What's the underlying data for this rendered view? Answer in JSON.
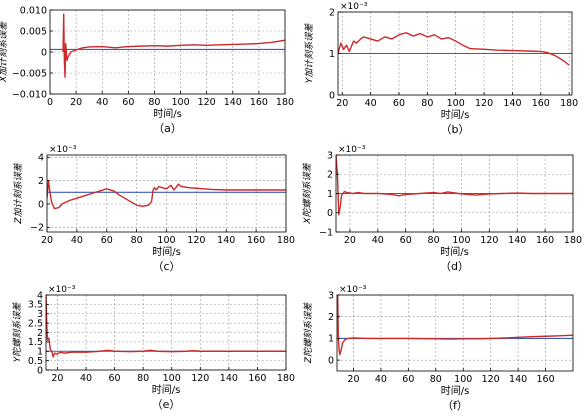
{
  "colors": {
    "estimate": "#cc2a2a",
    "reference": "#3b5bb8",
    "axis": "#000000",
    "grid": "#9a9a9a"
  },
  "chart_data": [
    {
      "type": "line",
      "panel_label": "（a）",
      "ylabel": "X加计刻系误差",
      "xlabel": "时间/s",
      "exponent": "",
      "grid": true,
      "xlim": [
        0,
        180
      ],
      "ylim": [
        -0.01,
        0.01
      ],
      "xticks": [
        0,
        20,
        40,
        60,
        80,
        100,
        120,
        140,
        160,
        180
      ],
      "yticks": [
        -0.01,
        -0.005,
        0,
        0.005,
        0.01
      ],
      "ytick_labels": [
        "−0.010",
        "−0.005",
        "0",
        "0.005",
        "0.010"
      ],
      "series": [
        {
          "role": "estimate",
          "x": [
            10,
            10.5,
            11,
            11.5,
            12,
            13,
            14,
            16,
            20,
            25,
            30,
            40,
            50,
            60,
            70,
            80,
            90,
            100,
            110,
            120,
            130,
            140,
            150,
            160,
            170,
            180
          ],
          "y": [
            0,
            0.009,
            -0.002,
            -0.006,
            0.002,
            -0.002,
            -0.001,
            0,
            0.0005,
            0.001,
            0.0012,
            0.0013,
            0.001,
            0.0013,
            0.0014,
            0.0015,
            0.0014,
            0.0016,
            0.0017,
            0.0016,
            0.0017,
            0.0018,
            0.0019,
            0.002,
            0.0023,
            0.0028
          ]
        },
        {
          "role": "reference",
          "x": [
            0,
            180
          ],
          "y": [
            0.0006,
            0.0006
          ]
        }
      ]
    },
    {
      "type": "line",
      "panel_label": "（b）",
      "ylabel": "Y加计刻系误差",
      "xlabel": "时间/s",
      "exponent": "×10⁻³",
      "grid": true,
      "xlim": [
        17,
        182
      ],
      "ylim": [
        0,
        2
      ],
      "xticks": [
        20,
        40,
        60,
        80,
        100,
        120,
        140,
        160,
        180
      ],
      "yticks": [
        0,
        1,
        2
      ],
      "ytick_labels": [
        "0",
        "1",
        "2"
      ],
      "series": [
        {
          "role": "estimate",
          "x": [
            17,
            19,
            21,
            23,
            25,
            28,
            30,
            33,
            35,
            40,
            45,
            50,
            55,
            60,
            65,
            70,
            75,
            80,
            85,
            90,
            95,
            100,
            105,
            110,
            120,
            130,
            140,
            150,
            160,
            165,
            170,
            175,
            180
          ],
          "y": [
            1.0,
            1.25,
            1.1,
            1.2,
            1.05,
            1.3,
            1.25,
            1.35,
            1.4,
            1.35,
            1.3,
            1.4,
            1.35,
            1.45,
            1.5,
            1.42,
            1.48,
            1.4,
            1.45,
            1.35,
            1.38,
            1.3,
            1.2,
            1.12,
            1.1,
            1.08,
            1.07,
            1.06,
            1.05,
            1.02,
            0.95,
            0.85,
            0.72
          ]
        },
        {
          "role": "reference",
          "x": [
            17,
            182
          ],
          "y": [
            1.0,
            1.0
          ]
        }
      ]
    },
    {
      "type": "line",
      "panel_label": "（c）",
      "ylabel": "Z加计刻系误差",
      "xlabel": "时间/s",
      "exponent": "×10⁻³",
      "grid": true,
      "xlim": [
        20,
        180
      ],
      "ylim": [
        -2.4,
        4.2
      ],
      "xticks": [
        20,
        40,
        60,
        80,
        100,
        120,
        140,
        160,
        180
      ],
      "yticks": [
        -2,
        0,
        2,
        4
      ],
      "ytick_labels": [
        "−2",
        "0",
        "2",
        "4"
      ],
      "series": [
        {
          "role": "estimate",
          "x": [
            20,
            21,
            22,
            23,
            25,
            28,
            30,
            35,
            40,
            45,
            50,
            55,
            60,
            65,
            68,
            72,
            76,
            80,
            84,
            88,
            90,
            91,
            92,
            93,
            95,
            97,
            100,
            103,
            105,
            108,
            110,
            115,
            120,
            130,
            140,
            150,
            160,
            170,
            180
          ],
          "y": [
            0.5,
            2.0,
            1.0,
            0.2,
            -0.4,
            -0.3,
            0.0,
            0.3,
            0.5,
            0.7,
            0.9,
            1.1,
            1.3,
            1.1,
            0.8,
            0.5,
            0.2,
            -0.1,
            -0.2,
            -0.1,
            0.2,
            1.2,
            1.4,
            1.2,
            1.5,
            1.4,
            1.3,
            1.6,
            1.2,
            1.7,
            1.5,
            1.4,
            1.35,
            1.25,
            1.2,
            1.2,
            1.2,
            1.2,
            1.2
          ]
        },
        {
          "role": "reference",
          "x": [
            20,
            180
          ],
          "y": [
            1.0,
            1.0
          ]
        }
      ]
    },
    {
      "type": "line",
      "panel_label": "（d）",
      "ylabel": "X陀螺刻系误差",
      "xlabel": "时间/s",
      "exponent": "×10⁻³",
      "grid": true,
      "xlim": [
        10,
        180
      ],
      "ylim": [
        -1,
        3
      ],
      "xticks": [
        20,
        40,
        60,
        80,
        100,
        120,
        140,
        160,
        180
      ],
      "yticks": [
        -1,
        0,
        1,
        2,
        3
      ],
      "ytick_labels": [
        "−1",
        "0",
        "1",
        "2",
        "3"
      ],
      "series": [
        {
          "role": "estimate",
          "x": [
            10,
            11,
            12,
            13,
            14,
            16,
            18,
            22,
            26,
            30,
            40,
            50,
            55,
            60,
            70,
            80,
            85,
            90,
            100,
            110,
            120,
            130,
            140,
            150,
            160,
            170,
            180
          ],
          "y": [
            3.0,
            2.0,
            -0.1,
            0.3,
            0.9,
            1.1,
            1.05,
            1.0,
            1.05,
            1.0,
            1.0,
            0.95,
            0.88,
            0.95,
            1.0,
            1.05,
            1.0,
            1.08,
            0.98,
            0.92,
            0.98,
            1.0,
            1.02,
            1.0,
            1.0,
            1.0,
            1.0
          ]
        },
        {
          "role": "reference",
          "x": [
            10,
            180
          ],
          "y": [
            1.0,
            1.0
          ]
        }
      ]
    },
    {
      "type": "line",
      "panel_label": "（e）",
      "ylabel": "Y陀螺刻系误差",
      "xlabel": "时间/s",
      "exponent": "×10⁻³",
      "grid": true,
      "xlim": [
        12,
        180
      ],
      "ylim": [
        0,
        4
      ],
      "xticks": [
        20,
        40,
        60,
        80,
        100,
        120,
        140,
        160,
        180
      ],
      "yticks": [
        0,
        0.5,
        1,
        1.5,
        2,
        2.5,
        3,
        3.5,
        4
      ],
      "ytick_labels": [
        "0",
        "0.5",
        "1",
        "1.5",
        "2",
        "2.5",
        "3",
        "3.5",
        "4"
      ],
      "series": [
        {
          "role": "estimate",
          "x": [
            12,
            12.5,
            13,
            14,
            15,
            16,
            17,
            18,
            20,
            22,
            25,
            30,
            40,
            50,
            55,
            60,
            70,
            80,
            85,
            90,
            100,
            110,
            115,
            120,
            130,
            140,
            150,
            160,
            170,
            180
          ],
          "y": [
            4.0,
            2.5,
            1.6,
            1.7,
            1.1,
            1.0,
            0.7,
            0.9,
            0.85,
            0.95,
            0.9,
            0.95,
            0.95,
            1.0,
            1.05,
            1.0,
            0.98,
            1.0,
            1.05,
            1.0,
            0.98,
            1.0,
            1.03,
            1.0,
            1.0,
            1.0,
            1.0,
            1.0,
            1.0,
            1.0
          ]
        },
        {
          "role": "reference",
          "x": [
            12,
            180
          ],
          "y": [
            1.0,
            1.0
          ]
        }
      ]
    },
    {
      "type": "line",
      "panel_label": "（f）",
      "ylabel": "Z陀螺刻系误差",
      "xlabel": "时间/s",
      "exponent": "×10⁻³",
      "grid": true,
      "xlim": [
        8,
        180
      ],
      "ylim": [
        -0.5,
        3
      ],
      "xticks": [
        20,
        40,
        60,
        80,
        100,
        120,
        140,
        160
      ],
      "yticks": [
        0,
        1,
        2,
        3
      ],
      "ytick_labels": [
        "0",
        "1",
        "2",
        "3"
      ],
      "series": [
        {
          "role": "estimate",
          "x": [
            8.5,
            9,
            9.5,
            10,
            11,
            12,
            14,
            16,
            20,
            30,
            40,
            60,
            80,
            90,
            100,
            110,
            120,
            130,
            140,
            150,
            160,
            170,
            180
          ],
          "y": [
            3.0,
            1.0,
            0.5,
            0.25,
            0.45,
            0.8,
            0.95,
            1.0,
            1.02,
            1.0,
            1.0,
            1.0,
            0.98,
            0.97,
            0.98,
            0.98,
            1.0,
            1.02,
            1.05,
            1.08,
            1.1,
            1.12,
            1.15
          ]
        },
        {
          "role": "reference",
          "x": [
            8,
            180
          ],
          "y": [
            1.0,
            1.0
          ]
        }
      ]
    }
  ]
}
